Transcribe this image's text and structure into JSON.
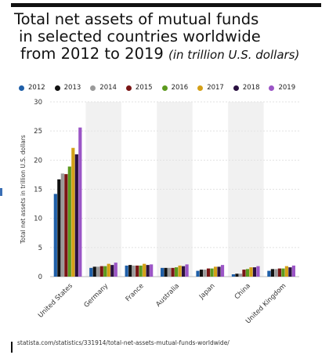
{
  "title": {
    "line1": "Total net assets of mutual funds",
    "line2": "in selected countries worldwide",
    "line3": "from 2012 to 2019",
    "subtitle": "(in trillion U.S. dollars)"
  },
  "footer": "statista.com/statistics/331914/total-net-assets-mutual-funds-worldwide/",
  "chart_data": {
    "type": "bar",
    "categories": [
      "United States",
      "Germany",
      "France",
      "Australia",
      "Japan",
      "China",
      "United Kingdom"
    ],
    "ylabel": "Total net assets in trillion U.S. dollars",
    "ylim": [
      0,
      30
    ],
    "yticks": [
      "0",
      "5",
      "10",
      "15",
      "20",
      "25",
      "30"
    ],
    "grid": true,
    "legend_position": "top",
    "series": [
      {
        "name": "2012",
        "color": "#1f5fa8",
        "values": [
          14.2,
          1.5,
          1.9,
          1.5,
          1.0,
          0.4,
          1.0
        ]
      },
      {
        "name": "2013",
        "color": "#111111",
        "values": [
          16.7,
          1.7,
          2.0,
          1.5,
          1.2,
          0.5,
          1.3
        ]
      },
      {
        "name": "2014",
        "color": "#9a9a9a",
        "values": [
          17.7,
          1.7,
          1.9,
          1.5,
          1.2,
          0.5,
          1.3
        ]
      },
      {
        "name": "2015",
        "color": "#7a1515",
        "values": [
          17.6,
          1.8,
          1.9,
          1.5,
          1.4,
          1.2,
          1.4
        ]
      },
      {
        "name": "2016",
        "color": "#5c9a1e",
        "values": [
          18.9,
          1.8,
          1.9,
          1.6,
          1.4,
          1.3,
          1.4
        ]
      },
      {
        "name": "2017",
        "color": "#d4a017",
        "values": [
          22.1,
          2.2,
          2.2,
          1.9,
          1.7,
          1.6,
          1.8
        ]
      },
      {
        "name": "2018",
        "color": "#2a1140",
        "values": [
          21.0,
          2.0,
          2.0,
          1.8,
          1.7,
          1.6,
          1.6
        ]
      },
      {
        "name": "2019",
        "color": "#9b55c6",
        "values": [
          25.6,
          2.4,
          2.1,
          2.1,
          2.0,
          1.8,
          1.9
        ]
      }
    ]
  }
}
